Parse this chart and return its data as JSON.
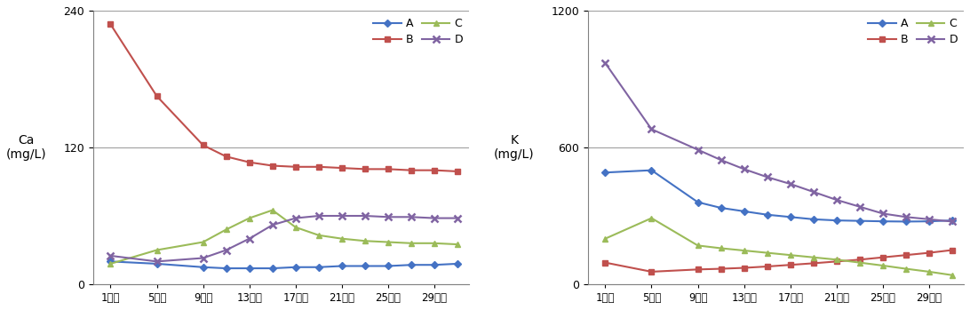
{
  "x_labels": [
    "1일차",
    "5일차",
    "9일차",
    "13일차",
    "17일차",
    "21일차",
    "25일차",
    "29일차"
  ],
  "x_ticks_pos": [
    1,
    5,
    9,
    13,
    17,
    21,
    25,
    29
  ],
  "ca_A": [
    20,
    18,
    15,
    14,
    14,
    14,
    15,
    15,
    16,
    16,
    16,
    17,
    17,
    18
  ],
  "ca_B": [
    228,
    165,
    122,
    112,
    107,
    104,
    103,
    103,
    102,
    101,
    101,
    100,
    100,
    99
  ],
  "ca_C": [
    18,
    30,
    37,
    48,
    58,
    65,
    50,
    43,
    40,
    38,
    37,
    36,
    36,
    35
  ],
  "ca_D": [
    25,
    20,
    23,
    30,
    40,
    52,
    58,
    60,
    60,
    60,
    59,
    59,
    58,
    58
  ],
  "k_A": [
    490,
    500,
    360,
    335,
    320,
    305,
    295,
    285,
    280,
    278,
    276,
    275,
    276,
    280
  ],
  "k_B": [
    95,
    55,
    65,
    68,
    72,
    78,
    85,
    92,
    100,
    108,
    118,
    128,
    138,
    150
  ],
  "k_C": [
    200,
    290,
    170,
    158,
    148,
    138,
    128,
    118,
    108,
    95,
    82,
    68,
    55,
    40
  ],
  "k_D": [
    970,
    680,
    590,
    545,
    505,
    470,
    440,
    405,
    370,
    340,
    310,
    295,
    285,
    275
  ],
  "x_data": [
    1,
    5,
    9,
    11,
    13,
    15,
    17,
    19,
    21,
    23,
    25,
    27,
    29,
    31
  ],
  "ca_ylim": [
    0,
    240
  ],
  "ca_yticks": [
    0,
    120,
    240
  ],
  "k_ylim": [
    0,
    1200
  ],
  "k_yticks": [
    0,
    600,
    1200
  ],
  "color_A": "#4472C4",
  "color_B": "#C0504D",
  "color_C": "#9BBB59",
  "color_D": "#8064A2",
  "ylabel_ca": "Ca\n(mg/L)",
  "ylabel_k": "K\n(mg/L)",
  "background_color": "#FFFFFF",
  "grid_color": "#A0A0A0"
}
